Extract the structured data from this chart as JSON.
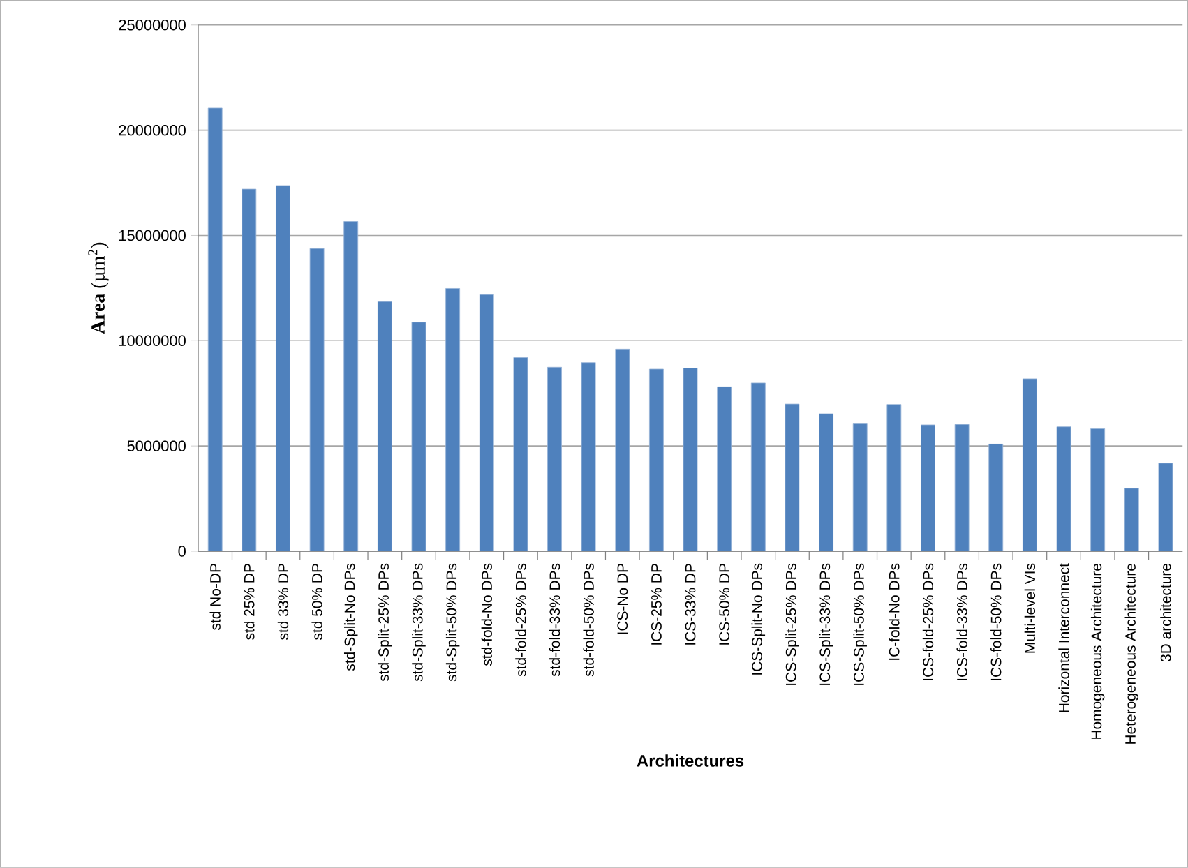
{
  "chart_data": {
    "type": "bar",
    "xlabel": "Architectures",
    "ylabel": "**Area** (µm$^{2}$)",
    "categories": [
      "std No-DP",
      "std 25% DP",
      "std 33% DP",
      "std 50% DP",
      "std-Split-No DPs",
      "std-Split-25% DPs",
      "std-Split-33% DPs",
      "std-Split-50% DPs",
      "std-fold-No DPs",
      "std-fold-25% DPs",
      "std-fold-33% DPs",
      "std-fold-50% DPs",
      "ICS-No DP",
      "ICS-25% DP",
      "ICS-33% DP",
      "ICS-50% DP",
      "ICS-Split-No DPs",
      "ICS-Split-25% DPs",
      "ICS-Split-33% DPs",
      "ICS-Split-50% DPs",
      "IC-fold-No DPs",
      "ICS-fold-25% DPs",
      "ICS-fold-33% DPs",
      "ICS-fold-50% DPs",
      "Multi-level VIs",
      "Horizontal Interconnect",
      "Homogeneous Architecture",
      "Heterogeneous Architecture",
      "3D architecture"
    ],
    "values": [
      21050000,
      17200000,
      17370000,
      14380000,
      15660000,
      11860000,
      10880000,
      12480000,
      12190000,
      9200000,
      8740000,
      8960000,
      9600000,
      8650000,
      8700000,
      7810000,
      7990000,
      6990000,
      6530000,
      6080000,
      6970000,
      6000000,
      6020000,
      5090000,
      8190000,
      5910000,
      5820000,
      2990000,
      4180000
    ],
    "color": "#4f81bd",
    "ylim": [
      0,
      25000000
    ],
    "yticks": [
      0,
      5000000,
      10000000,
      15000000,
      20000000,
      25000000
    ],
    "grid": "y"
  }
}
